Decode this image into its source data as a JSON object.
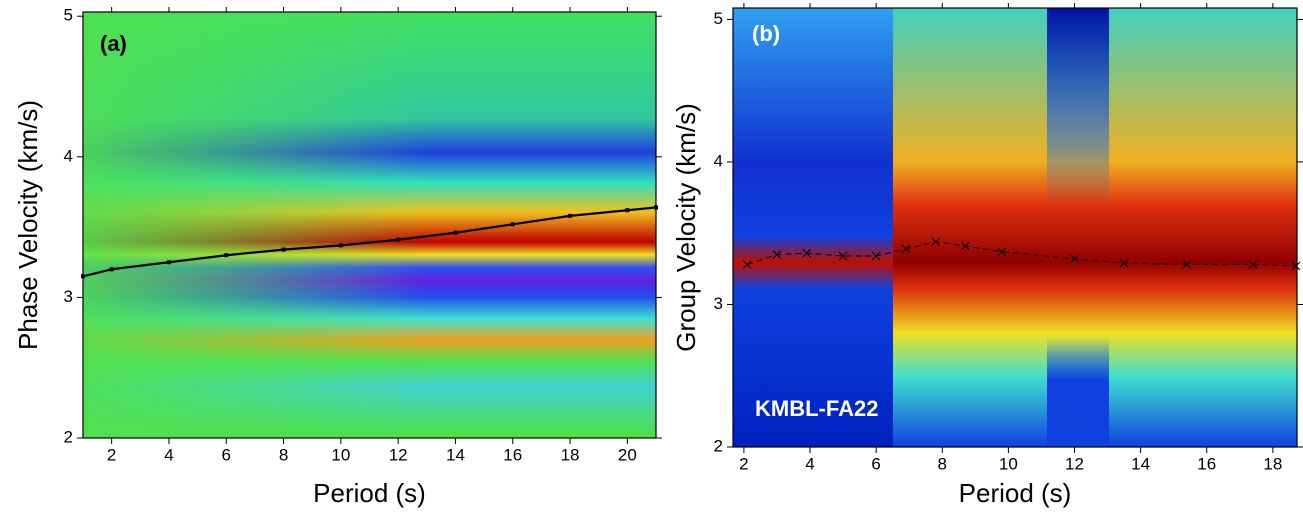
{
  "chart_data": [
    {
      "type": "line",
      "annotation": "(a)",
      "annotation_color": "#000000",
      "xlabel": "Period (s)",
      "ylabel": "Phase Velocity (km/s)",
      "xlim": [
        1,
        21
      ],
      "ylim": [
        2,
        5.03
      ],
      "xticks": [
        2,
        4,
        6,
        8,
        10,
        12,
        14,
        16,
        18,
        20
      ],
      "yticks": [
        2,
        3,
        4,
        5
      ],
      "marker": "square",
      "line_style": "solid",
      "series": [
        {
          "color": "#000000",
          "x": [
            1,
            2,
            4,
            6,
            8,
            10,
            12,
            14,
            16,
            18,
            20,
            21
          ],
          "values": [
            3.15,
            3.2,
            3.25,
            3.3,
            3.34,
            3.37,
            3.41,
            3.46,
            3.52,
            3.58,
            3.62,
            3.64
          ]
        }
      ]
    },
    {
      "type": "line",
      "annotation": "(b)",
      "annotation_color": "#ffffff",
      "label": "KMBL-FA22",
      "xlabel": "Period (s)",
      "ylabel": "Group Velocity (km/s)",
      "xlim": [
        1.67,
        18.73
      ],
      "ylim": [
        2,
        5.08
      ],
      "xticks": [
        2,
        4,
        6,
        8,
        10,
        12,
        14,
        16,
        18
      ],
      "yticks": [
        2,
        3,
        4,
        5
      ],
      "marker": "x",
      "line_style": "dashed",
      "series": [
        {
          "color": "#000000",
          "x": [
            2.1,
            3,
            3.9,
            5,
            6,
            6.9,
            7.8,
            8.7,
            9.8,
            12,
            13.5,
            15.4,
            17.4,
            18.7
          ],
          "values": [
            3.28,
            3.35,
            3.36,
            3.34,
            3.34,
            3.39,
            3.44,
            3.41,
            3.37,
            3.32,
            3.29,
            3.28,
            3.28,
            3.27
          ]
        }
      ]
    }
  ]
}
